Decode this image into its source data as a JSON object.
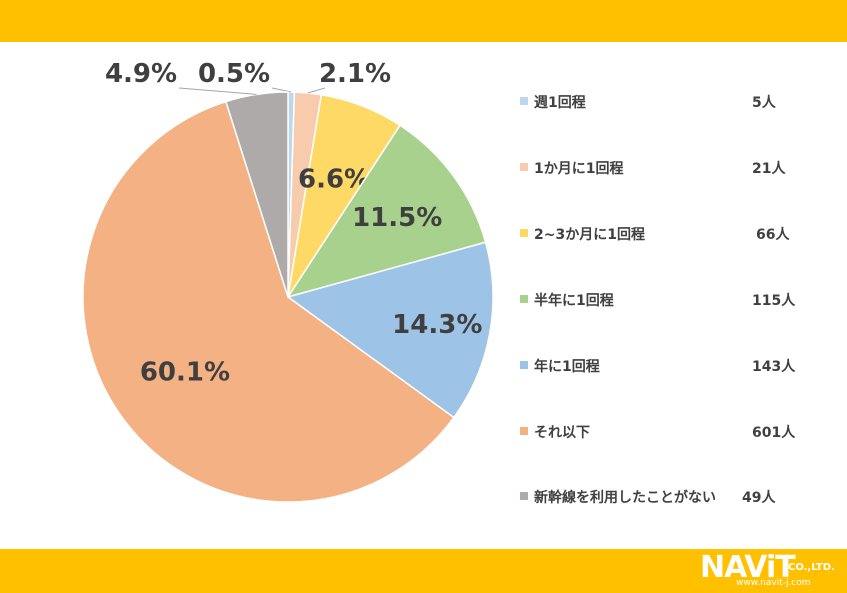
{
  "chart_data": {
    "type": "pie",
    "start_angle_deg": 0,
    "direction": "clockwise",
    "slices": [
      {
        "label": "週1回程",
        "count": "5人",
        "value": 0.5,
        "value_label": "0.5%",
        "color": "#BDD7EE"
      },
      {
        "label": "1か月に1回程",
        "count": "21人",
        "value": 2.1,
        "value_label": "2.1%",
        "color": "#F8CBAD"
      },
      {
        "label": "2~3か月に1回程",
        "count": "66人",
        "value": 6.6,
        "value_label": "6.6%",
        "color": "#FFD966"
      },
      {
        "label": "半年に1回程",
        "count": "115人",
        "value": 11.5,
        "value_label": "11.5%",
        "color": "#A9D18E"
      },
      {
        "label": "年に1回程",
        "count": "143人",
        "value": 14.3,
        "value_label": "14.3%",
        "color": "#9DC3E6"
      },
      {
        "label": "それ以下",
        "count": "601人",
        "value": 60.1,
        "value_label": "60.1%",
        "color": "#F4B183"
      },
      {
        "label": "新幹線を利用したことがない",
        "count": "49人",
        "value": 4.9,
        "value_label": "4.9%",
        "color": "#AEAAAA"
      }
    ],
    "legend_position": "right"
  },
  "logo": {
    "main": "NAViT",
    "company": "CO.,LTD.",
    "url": "www.navit-j.com"
  }
}
